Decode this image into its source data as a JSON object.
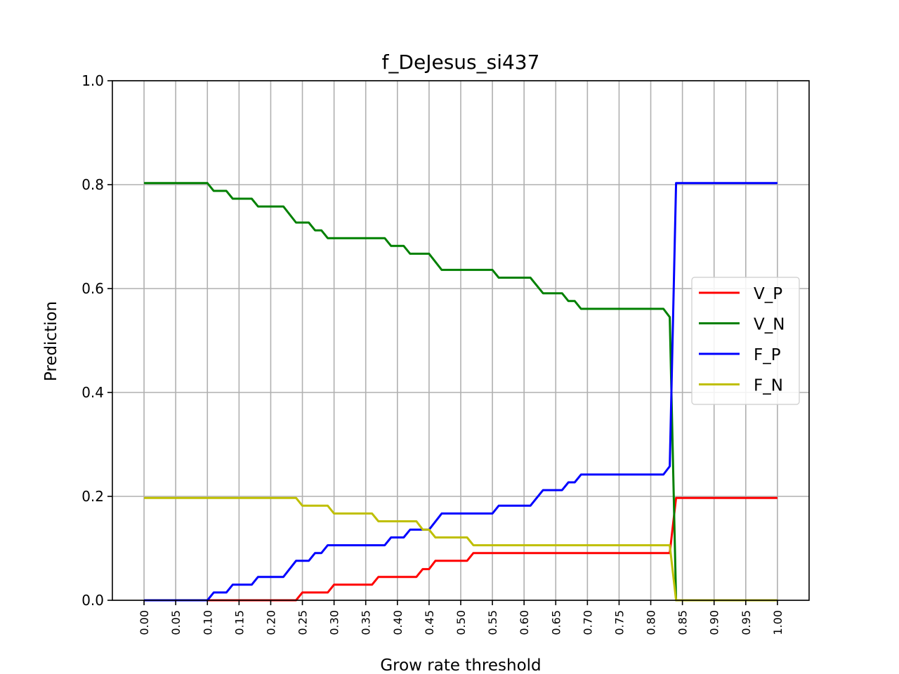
{
  "chart_data": {
    "type": "line",
    "title": "f_DeJesus_si437",
    "xlabel": "Grow rate threshold",
    "ylabel": "Prediction",
    "xlim": [
      -0.05,
      1.05
    ],
    "ylim": [
      0.0,
      1.0
    ],
    "grid": true,
    "legend_position": "center-right",
    "yticks": [
      "0.0",
      "0.2",
      "0.4",
      "0.6",
      "0.8",
      "1.0"
    ],
    "xticks": [
      "0.00",
      "0.05",
      "0.10",
      "0.15",
      "0.20",
      "0.25",
      "0.30",
      "0.35",
      "0.40",
      "0.45",
      "0.50",
      "0.55",
      "0.60",
      "0.65",
      "0.70",
      "0.75",
      "0.80",
      "0.85",
      "0.90",
      "0.95",
      "1.00"
    ],
    "series": [
      {
        "name": "V_P",
        "color": "#ff0000",
        "points": [
          [
            0.0,
            0.0
          ],
          [
            0.24,
            0.0
          ],
          [
            0.25,
            0.015
          ],
          [
            0.29,
            0.015
          ],
          [
            0.3,
            0.03
          ],
          [
            0.36,
            0.03
          ],
          [
            0.37,
            0.045
          ],
          [
            0.43,
            0.045
          ],
          [
            0.44,
            0.06
          ],
          [
            0.45,
            0.06
          ],
          [
            0.46,
            0.076
          ],
          [
            0.51,
            0.076
          ],
          [
            0.52,
            0.091
          ],
          [
            0.83,
            0.091
          ],
          [
            0.84,
            0.197
          ],
          [
            1.0,
            0.197
          ]
        ]
      },
      {
        "name": "V_N",
        "color": "#008000",
        "points": [
          [
            0.0,
            0.803
          ],
          [
            0.1,
            0.803
          ],
          [
            0.11,
            0.788
          ],
          [
            0.13,
            0.788
          ],
          [
            0.14,
            0.773
          ],
          [
            0.17,
            0.773
          ],
          [
            0.18,
            0.758
          ],
          [
            0.22,
            0.758
          ],
          [
            0.24,
            0.727
          ],
          [
            0.26,
            0.727
          ],
          [
            0.27,
            0.712
          ],
          [
            0.28,
            0.712
          ],
          [
            0.29,
            0.697
          ],
          [
            0.38,
            0.697
          ],
          [
            0.39,
            0.682
          ],
          [
            0.41,
            0.682
          ],
          [
            0.42,
            0.667
          ],
          [
            0.45,
            0.667
          ],
          [
            0.47,
            0.636
          ],
          [
            0.55,
            0.636
          ],
          [
            0.56,
            0.621
          ],
          [
            0.61,
            0.621
          ],
          [
            0.63,
            0.591
          ],
          [
            0.66,
            0.591
          ],
          [
            0.67,
            0.576
          ],
          [
            0.68,
            0.576
          ],
          [
            0.69,
            0.561
          ],
          [
            0.82,
            0.561
          ],
          [
            0.83,
            0.545
          ],
          [
            0.84,
            0.0
          ],
          [
            1.0,
            0.0
          ]
        ]
      },
      {
        "name": "F_P",
        "color": "#0000ff",
        "points": [
          [
            0.0,
            0.0
          ],
          [
            0.1,
            0.0
          ],
          [
            0.11,
            0.015
          ],
          [
            0.13,
            0.015
          ],
          [
            0.14,
            0.03
          ],
          [
            0.17,
            0.03
          ],
          [
            0.18,
            0.045
          ],
          [
            0.22,
            0.045
          ],
          [
            0.24,
            0.076
          ],
          [
            0.26,
            0.076
          ],
          [
            0.27,
            0.091
          ],
          [
            0.28,
            0.091
          ],
          [
            0.29,
            0.106
          ],
          [
            0.38,
            0.106
          ],
          [
            0.39,
            0.121
          ],
          [
            0.41,
            0.121
          ],
          [
            0.42,
            0.136
          ],
          [
            0.45,
            0.136
          ],
          [
            0.47,
            0.167
          ],
          [
            0.55,
            0.167
          ],
          [
            0.56,
            0.182
          ],
          [
            0.61,
            0.182
          ],
          [
            0.63,
            0.212
          ],
          [
            0.66,
            0.212
          ],
          [
            0.67,
            0.227
          ],
          [
            0.68,
            0.227
          ],
          [
            0.69,
            0.242
          ],
          [
            0.82,
            0.242
          ],
          [
            0.83,
            0.258
          ],
          [
            0.84,
            0.803
          ],
          [
            1.0,
            0.803
          ]
        ]
      },
      {
        "name": "F_N",
        "color": "#bfbf00",
        "points": [
          [
            0.0,
            0.197
          ],
          [
            0.24,
            0.197
          ],
          [
            0.25,
            0.182
          ],
          [
            0.29,
            0.182
          ],
          [
            0.3,
            0.167
          ],
          [
            0.36,
            0.167
          ],
          [
            0.37,
            0.152
          ],
          [
            0.43,
            0.152
          ],
          [
            0.44,
            0.136
          ],
          [
            0.45,
            0.136
          ],
          [
            0.46,
            0.121
          ],
          [
            0.51,
            0.121
          ],
          [
            0.52,
            0.106
          ],
          [
            0.83,
            0.106
          ],
          [
            0.84,
            0.0
          ],
          [
            1.0,
            0.0
          ]
        ]
      }
    ]
  }
}
